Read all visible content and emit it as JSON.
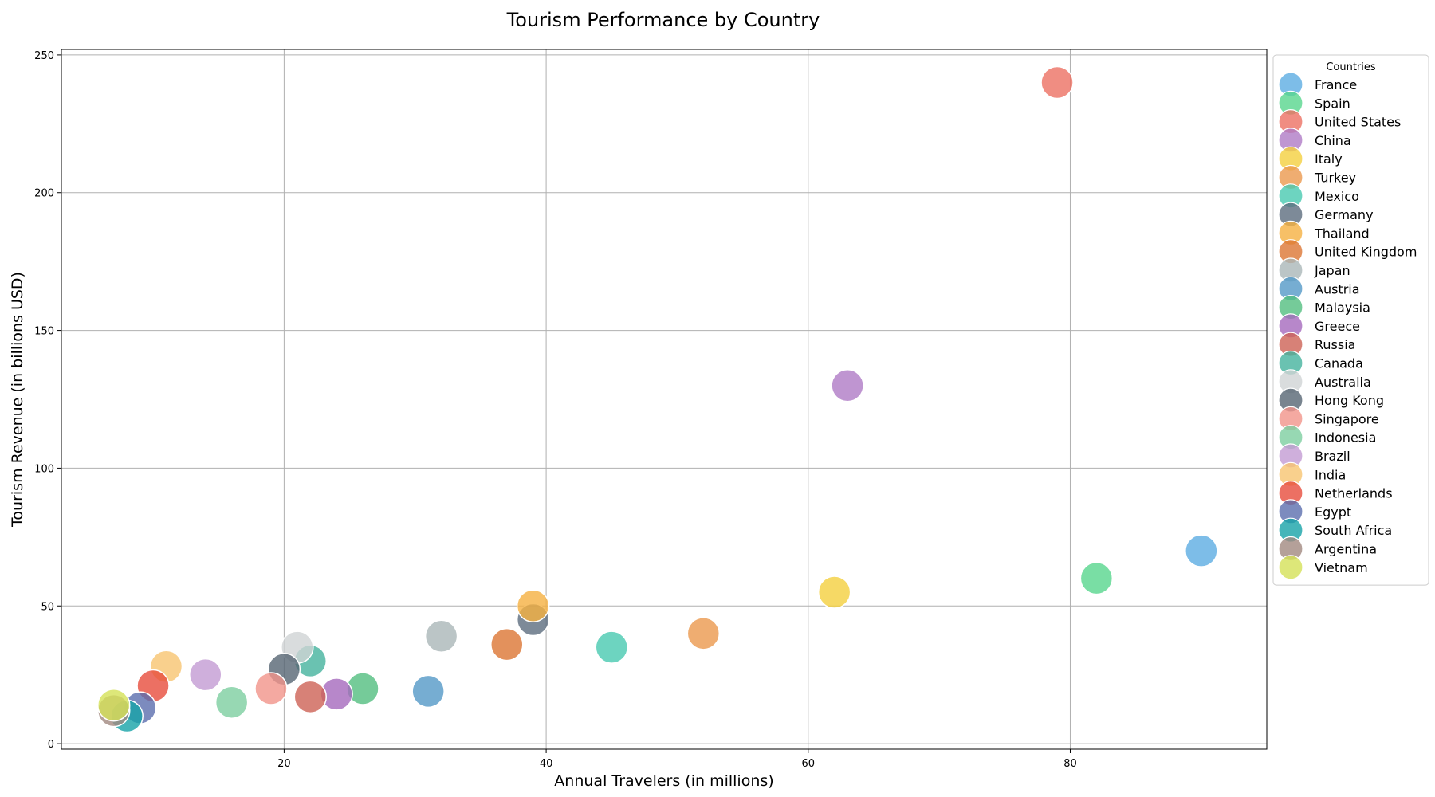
{
  "chart_data": {
    "type": "scatter",
    "title": "Tourism Performance by Country",
    "xlabel": "Annual Travelers (in millions)",
    "ylabel": "Tourism Revenue (in billions USD)",
    "xlim": [
      3,
      95
    ],
    "ylim": [
      -2,
      252
    ],
    "xticks": [
      20,
      40,
      60,
      80
    ],
    "yticks": [
      0,
      50,
      100,
      150,
      200,
      250
    ],
    "grid": true,
    "legend_title": "Countries",
    "legend_position": "right-outside",
    "series": [
      {
        "name": "France",
        "x": 90,
        "y": 70,
        "color": "#5dade2"
      },
      {
        "name": "Spain",
        "x": 82,
        "y": 60,
        "color": "#58d68d"
      },
      {
        "name": "United States",
        "x": 79,
        "y": 240,
        "color": "#ec7063"
      },
      {
        "name": "China",
        "x": 63,
        "y": 130,
        "color": "#af7ac5"
      },
      {
        "name": "Italy",
        "x": 62,
        "y": 55,
        "color": "#f4d03f"
      },
      {
        "name": "Turkey",
        "x": 52,
        "y": 40,
        "color": "#eb984e"
      },
      {
        "name": "Mexico",
        "x": 45,
        "y": 35,
        "color": "#48c9b0"
      },
      {
        "name": "Germany",
        "x": 39,
        "y": 45,
        "color": "#5d6d7e"
      },
      {
        "name": "Thailand",
        "x": 39,
        "y": 50,
        "color": "#f5b041"
      },
      {
        "name": "United Kingdom",
        "x": 37,
        "y": 36,
        "color": "#dc7633"
      },
      {
        "name": "Japan",
        "x": 32,
        "y": 39,
        "color": "#aab7b8"
      },
      {
        "name": "Austria",
        "x": 31,
        "y": 19,
        "color": "#5499c7"
      },
      {
        "name": "Malaysia",
        "x": 26,
        "y": 20,
        "color": "#52be80"
      },
      {
        "name": "Greece",
        "x": 24,
        "y": 18,
        "color": "#a569bd"
      },
      {
        "name": "Russia",
        "x": 22,
        "y": 17,
        "color": "#cd6155"
      },
      {
        "name": "Canada",
        "x": 22,
        "y": 30,
        "color": "#45b39d"
      },
      {
        "name": "Australia",
        "x": 21,
        "y": 35,
        "color": "#d0d3d4"
      },
      {
        "name": "Hong Kong",
        "x": 20,
        "y": 27,
        "color": "#566573"
      },
      {
        "name": "Singapore",
        "x": 19,
        "y": 20,
        "color": "#f1948a"
      },
      {
        "name": "Indonesia",
        "x": 16,
        "y": 15,
        "color": "#7dcea0"
      },
      {
        "name": "Brazil",
        "x": 14,
        "y": 25,
        "color": "#c39bd3"
      },
      {
        "name": "India",
        "x": 11,
        "y": 28,
        "color": "#f8c471"
      },
      {
        "name": "Netherlands",
        "x": 10,
        "y": 21,
        "color": "#e74c3c"
      },
      {
        "name": "Egypt",
        "x": 9,
        "y": 13,
        "color": "#5b6eae"
      },
      {
        "name": "South Africa",
        "x": 8,
        "y": 10,
        "color": "#17a2a8"
      },
      {
        "name": "Argentina",
        "x": 7,
        "y": 12,
        "color": "#a1887f"
      },
      {
        "name": "Vietnam",
        "x": 7,
        "y": 14,
        "color": "#d4e157"
      }
    ]
  }
}
